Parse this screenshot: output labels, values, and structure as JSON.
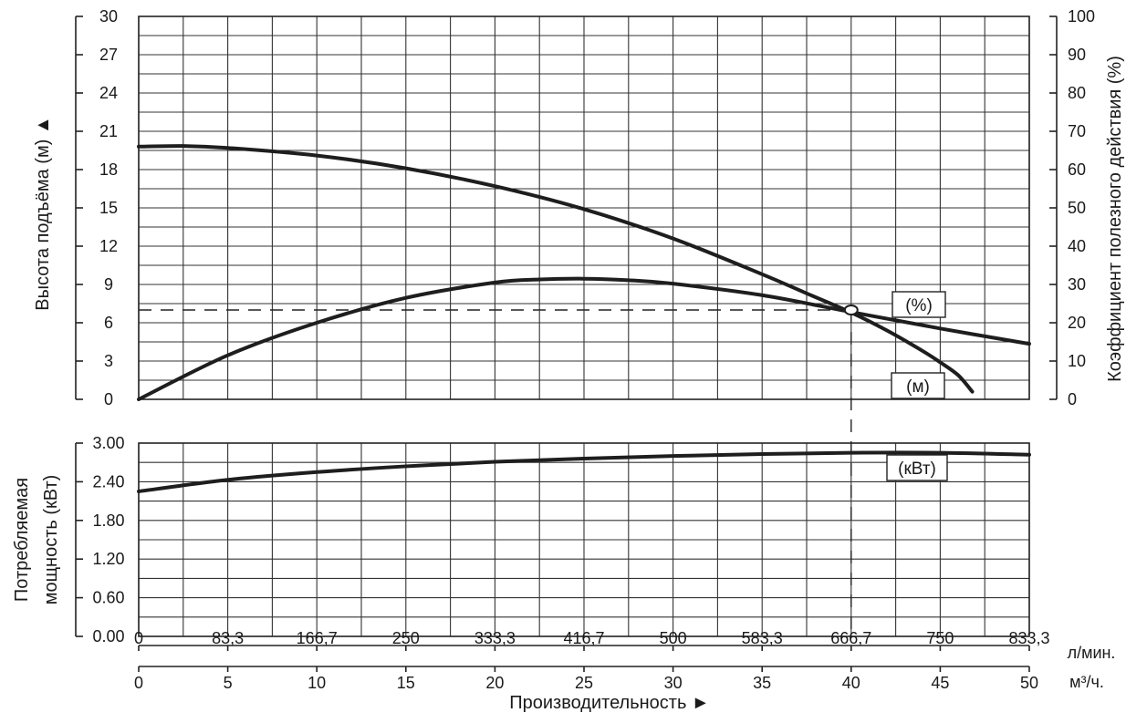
{
  "chart_data": {
    "type": "line",
    "title": "",
    "x_axis": {
      "flow_lpm": {
        "label": "л/мин.",
        "ticks": [
          "0",
          "83,3",
          "166,7",
          "250",
          "333,3",
          "416,7",
          "500",
          "583,3",
          "666,7",
          "750",
          "833,3"
        ]
      },
      "flow_m3h": {
        "label": "м³/ч.",
        "ticks": [
          "0",
          "5",
          "10",
          "15",
          "20",
          "25",
          "30",
          "35",
          "40",
          "45",
          "50"
        ],
        "range": [
          0,
          50
        ]
      },
      "title": "Производительность ►"
    },
    "upper_panel": {
      "left_axis": {
        "title": "Высота подъёма (м) ▲",
        "ticks": [
          "0",
          "3",
          "6",
          "9",
          "12",
          "15",
          "18",
          "21",
          "24",
          "27",
          "30"
        ],
        "range": [
          0,
          30
        ]
      },
      "right_axis": {
        "title": "Коэффициент полезного действия (%)",
        "ticks": [
          "0",
          "10",
          "20",
          "30",
          "40",
          "50",
          "60",
          "70",
          "80",
          "90",
          "100"
        ],
        "range": [
          0,
          100
        ]
      },
      "series": [
        {
          "name": "head",
          "label": "(м)",
          "unit_axis": "left",
          "x": [
            0,
            2.5,
            5,
            10,
            15,
            20,
            25,
            30,
            35,
            37.5,
            40,
            42,
            44,
            45,
            46,
            46.8
          ],
          "y": [
            19.8,
            19.85,
            19.7,
            19.1,
            18.1,
            16.7,
            14.9,
            12.6,
            9.8,
            8.3,
            6.8,
            5.4,
            3.8,
            2.9,
            1.9,
            0.6
          ]
        },
        {
          "name": "efficiency",
          "label": "(%)",
          "unit_axis": "right",
          "x": [
            0,
            5,
            10,
            15,
            20,
            22.5,
            25,
            27.5,
            30,
            35,
            40,
            45,
            50
          ],
          "y": [
            0,
            11.5,
            20,
            26.5,
            30.5,
            31.3,
            31.5,
            31.1,
            30.2,
            27.2,
            22.8,
            18.5,
            14.5
          ]
        }
      ],
      "operating_point": {
        "x": 40,
        "y_right": 23,
        "reference_line_left_value": 7
      }
    },
    "lower_panel": {
      "left_axis": {
        "title_line1": "Потребляемая",
        "title_line2": "мощность (кВт)",
        "ticks": [
          "0.00",
          "0.60",
          "1.20",
          "1.80",
          "2.40",
          "3.00"
        ],
        "range": [
          0,
          3.0
        ]
      },
      "series": [
        {
          "name": "power",
          "label": "(кВт)",
          "x": [
            0,
            5,
            10,
            15,
            20,
            25,
            30,
            35,
            40,
            45,
            50
          ],
          "y": [
            2.25,
            2.43,
            2.55,
            2.64,
            2.71,
            2.76,
            2.8,
            2.83,
            2.85,
            2.85,
            2.82
          ]
        }
      ]
    }
  }
}
